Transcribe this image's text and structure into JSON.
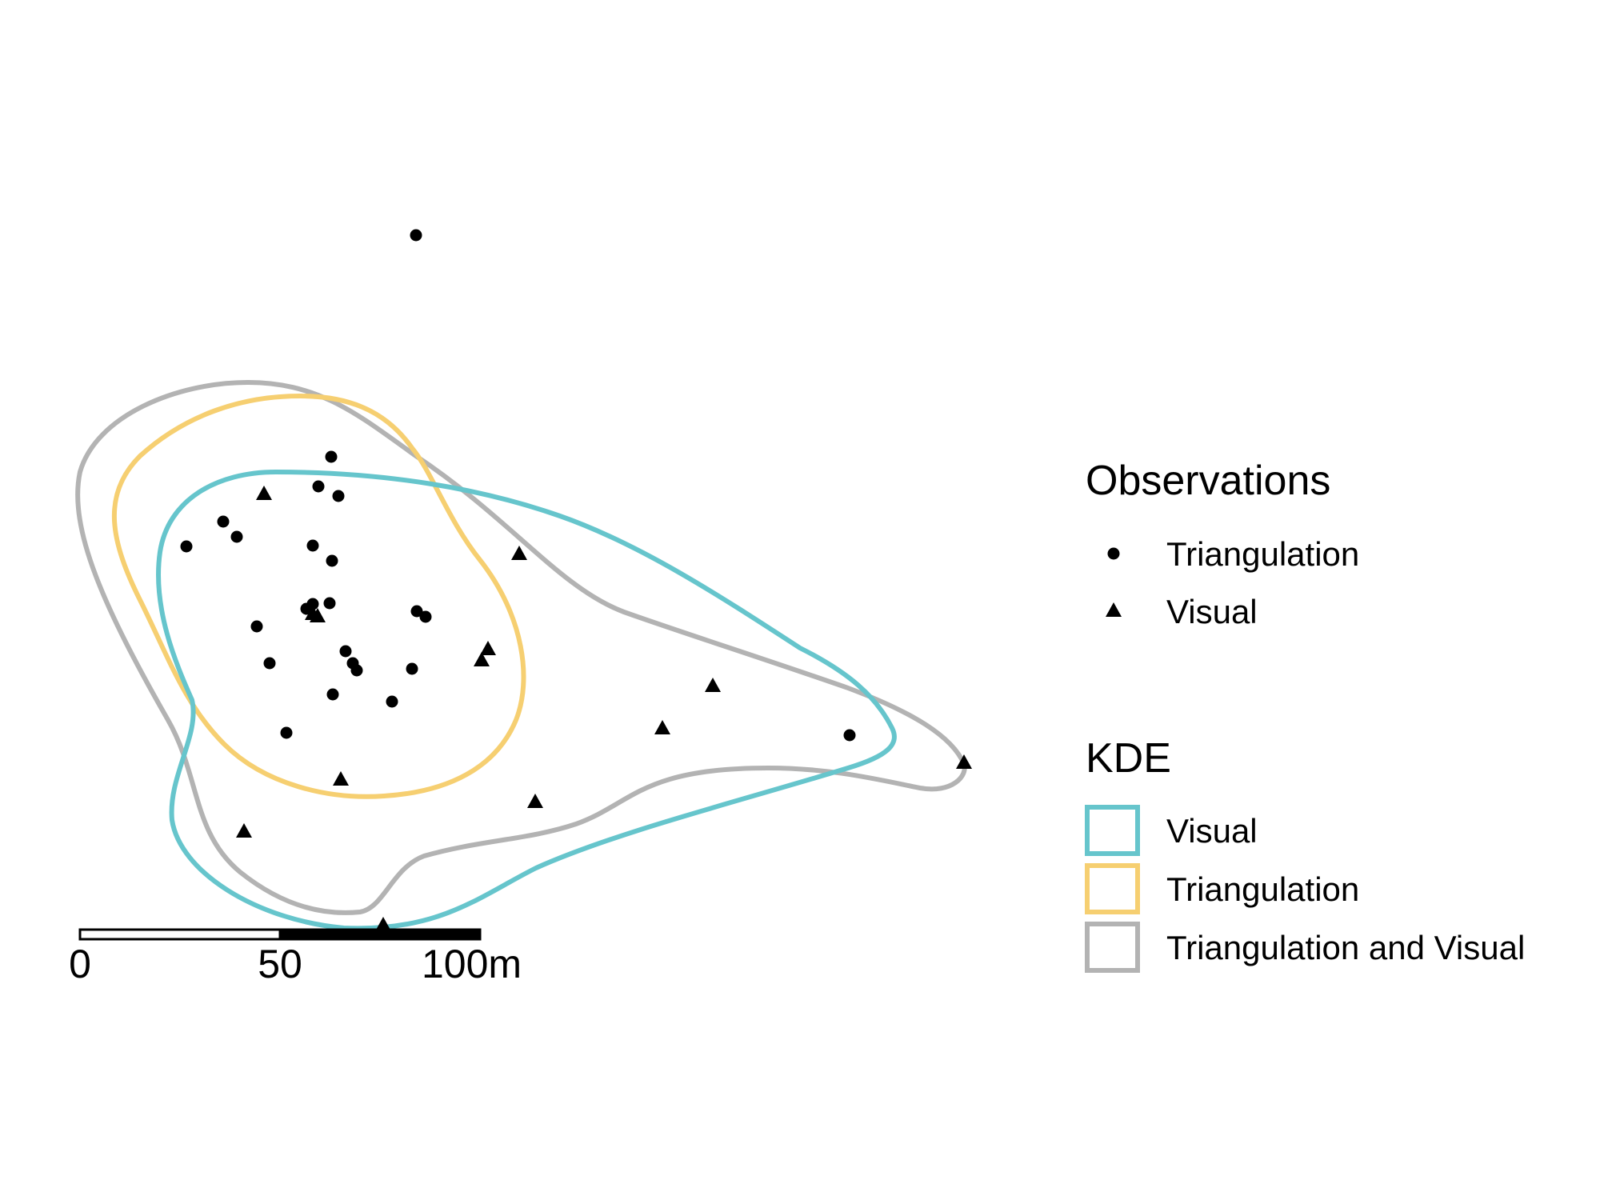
{
  "map": {
    "legend_observations": {
      "title": "Observations",
      "items": [
        {
          "label": "Triangulation",
          "symbol": "circle"
        },
        {
          "label": "Visual",
          "symbol": "triangle"
        }
      ]
    },
    "legend_kde": {
      "title": "KDE",
      "items": [
        {
          "label": "Visual",
          "color": "#66C5CC"
        },
        {
          "label": "Triangulation",
          "color": "#F6CF71"
        },
        {
          "label": "Triangulation and Visual",
          "color": "#B3B3B3"
        }
      ]
    },
    "scale_bar": {
      "labels": [
        "0",
        "50",
        "100m"
      ]
    }
  }
}
